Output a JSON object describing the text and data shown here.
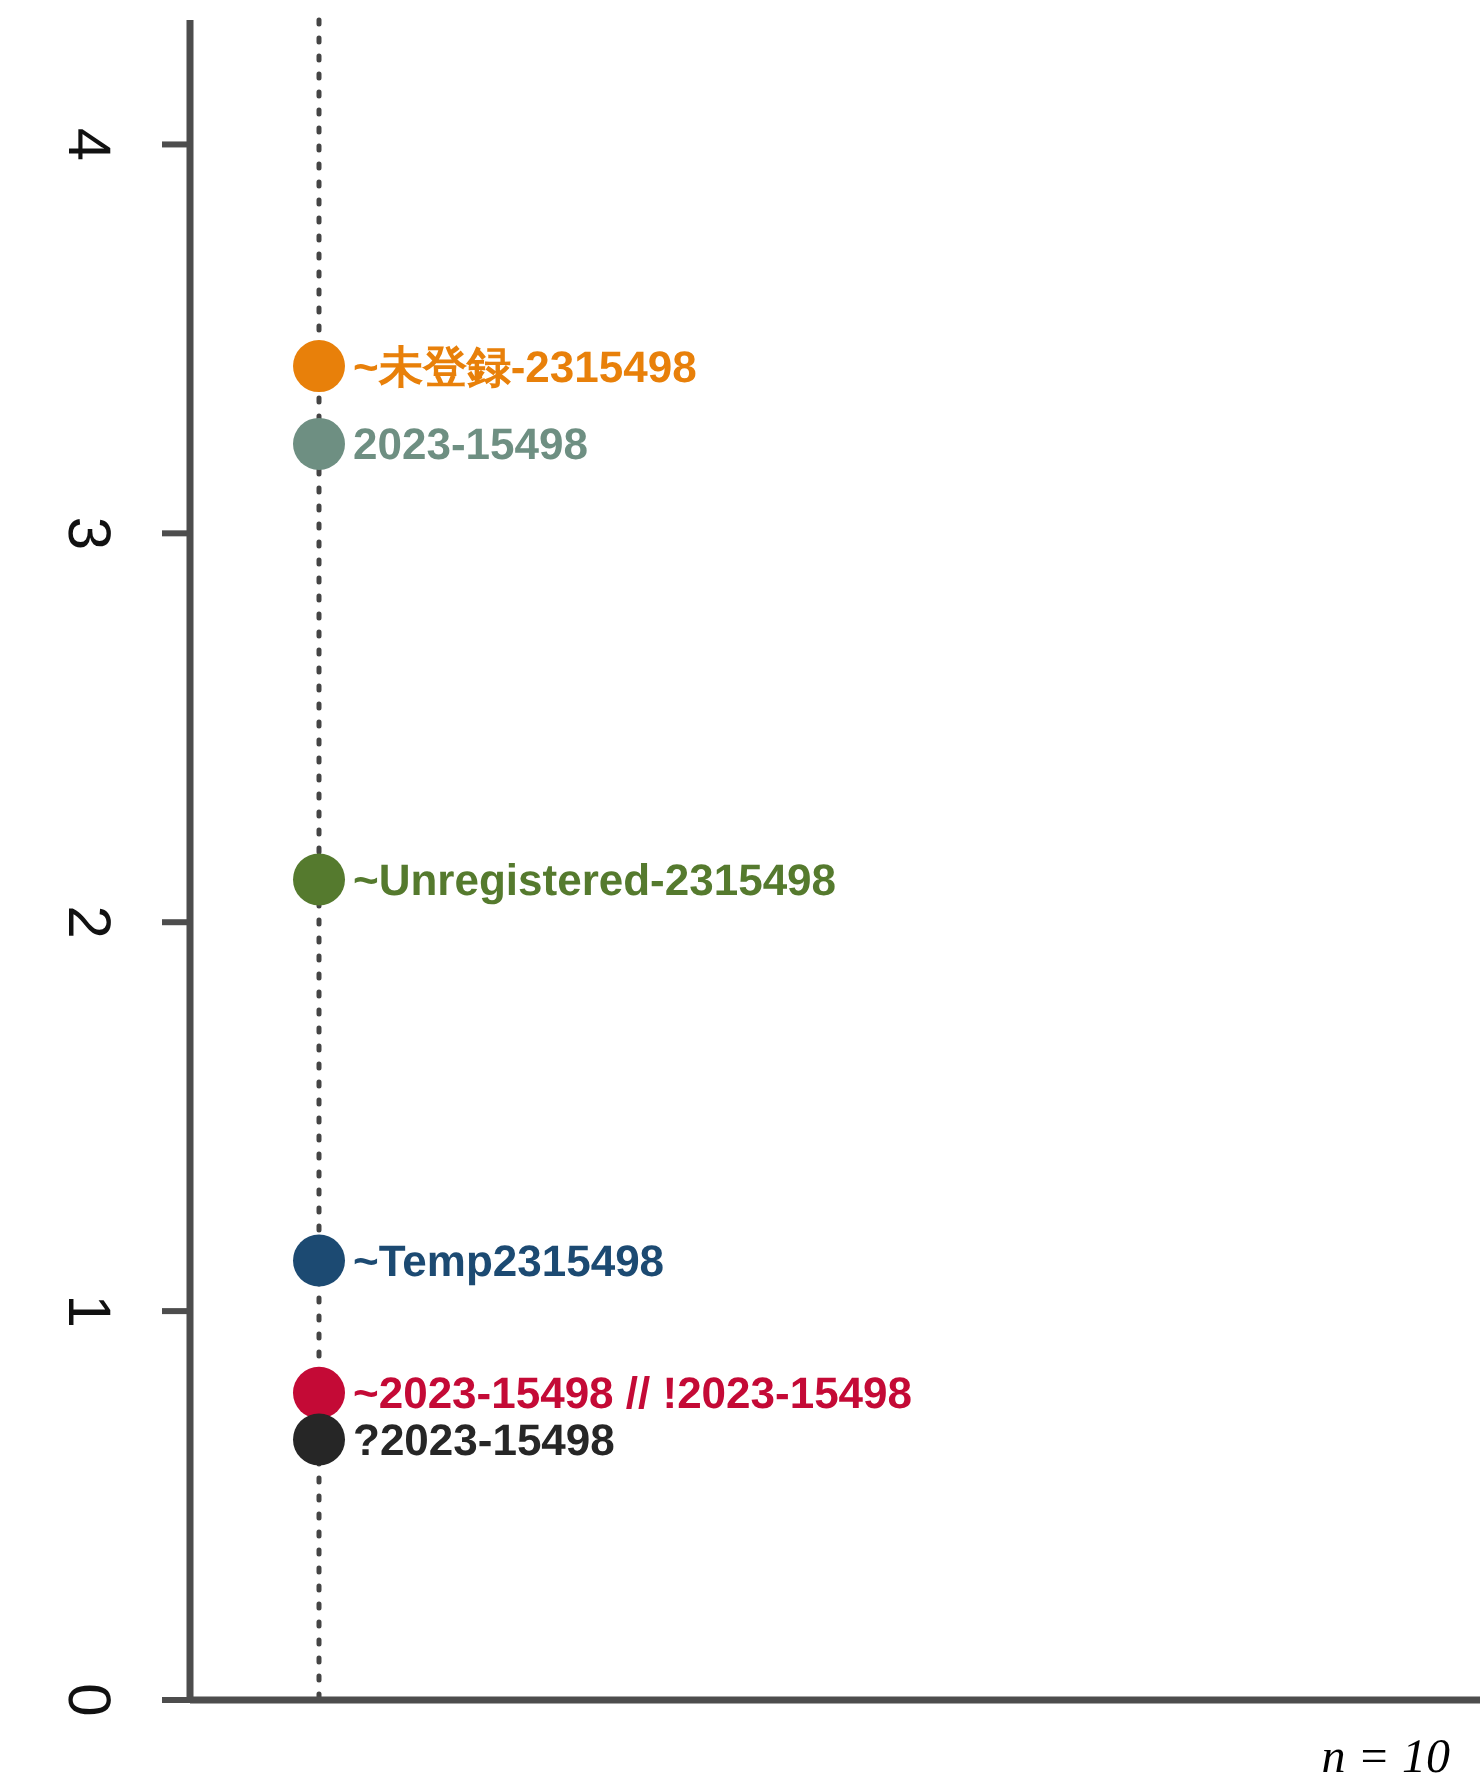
{
  "chart_data": {
    "type": "scatter",
    "categories": [
      null,
      null,
      null,
      null,
      null
    ],
    "ylim": [
      0,
      4.32
    ],
    "yticks": [
      0,
      1,
      2,
      3,
      4
    ],
    "tick_labels": "y",
    "grid": false,
    "legend": "left",
    "marker": "circle",
    "ref_lines": [
      {
        "axis": "x",
        "line_style": "dotted",
        "color": "#444444"
      }
    ],
    "series": [
      {
        "name": "~未登録-2315498",
        "color": "#e8800a",
        "values": [
          3.43,
          null,
          null,
          null,
          null
        ]
      },
      {
        "name": "2023-15498",
        "color": "#6e8f82",
        "values": [
          3.23,
          null,
          null,
          null,
          null
        ]
      },
      {
        "name": "~Unregistered-2315498",
        "color": "#557a2e",
        "values": [
          2.11,
          null,
          null,
          null,
          null
        ]
      },
      {
        "name": "~Temp2315498",
        "color": "#1c4a72",
        "values": [
          1.13,
          null,
          null,
          null,
          null
        ]
      },
      {
        "name": "~2023-15498 // !2023-15498",
        "color": "#c40a36",
        "values": [
          0.79,
          null,
          null,
          null,
          null
        ]
      },
      {
        "name": "?2023-15498",
        "color": "#262626",
        "values": [
          0.67,
          null,
          null,
          null,
          null
        ]
      }
    ],
    "annotations": [
      "n = 10"
    ]
  }
}
